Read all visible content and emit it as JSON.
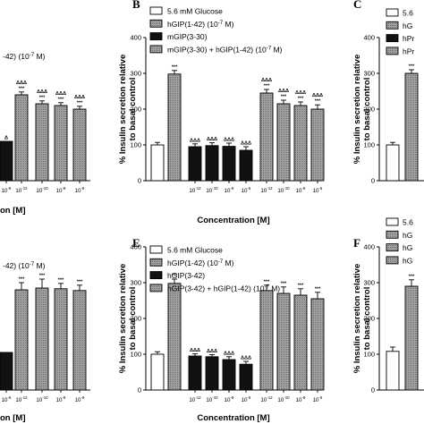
{
  "figure": {
    "panels": {
      "B": {
        "letter": "B"
      },
      "E": {
        "letter": "E"
      },
      "A_partial": {
        "legend_tail": "-42) (10",
        "legend_tail_exp": "-7",
        "legend_tail_unit": " M)",
        "xlabel_partial": "on [M]"
      },
      "D_partial": {
        "legend_tail": "-42) (10",
        "legend_tail_exp": "-7",
        "legend_tail_unit": " M)",
        "xlabel_partial": "on [M]"
      },
      "C": {
        "letter": "C",
        "legend_partial": [
          "5.6",
          "hG",
          "hPr",
          "hPr"
        ]
      },
      "F": {
        "letter": "F",
        "legend_partial": [
          "5.6",
          "hG",
          "hG",
          "hG"
        ]
      }
    }
  },
  "chart_data": [
    {
      "panel": "B",
      "type": "bar",
      "ylabel_line1": "% Insulin secretion relative",
      "ylabel_line2": "to basal control",
      "xlabel": "Concentration [M]",
      "ylim": [
        0,
        400
      ],
      "yticks": [
        "0",
        "100",
        "200",
        "300",
        "400"
      ],
      "xtick_base": "10",
      "xtick_exps": [
        "-12",
        "-10",
        "-8",
        "-6",
        "-12",
        "-10",
        "-8",
        "-6"
      ],
      "legend": [
        {
          "text": "5.6 mM Glucose",
          "exp": "",
          "tail": "",
          "fill": "white"
        },
        {
          "text": "hGIP(1-42)  (10",
          "exp": "-7",
          "tail": " M)",
          "fill": "grey"
        },
        {
          "text": "mGIP(3-30)",
          "exp": "",
          "tail": "",
          "fill": "black"
        },
        {
          "text": "mGIP(3-30) + hGIP(1-42) (10",
          "exp": "-7",
          "tail": " M)",
          "fill": "grey"
        }
      ],
      "bars": [
        {
          "value": 100,
          "err": 7,
          "fill": "white",
          "sig": []
        },
        {
          "value": 298,
          "err": 10,
          "fill": "grey",
          "sig": [
            "***"
          ]
        },
        {
          "value": 95,
          "err": 8,
          "fill": "black",
          "sig": [
            "ΔΔΔ"
          ]
        },
        {
          "value": 98,
          "err": 8,
          "fill": "black",
          "sig": [
            "ΔΔΔ"
          ]
        },
        {
          "value": 96,
          "err": 9,
          "fill": "black",
          "sig": [
            "ΔΔΔ"
          ]
        },
        {
          "value": 85,
          "err": 10,
          "fill": "black",
          "sig": [
            "ΔΔΔ"
          ]
        },
        {
          "value": 245,
          "err": 10,
          "fill": "grey",
          "sig": [
            "***",
            "ΔΔΔ"
          ]
        },
        {
          "value": 215,
          "err": 10,
          "fill": "grey",
          "sig": [
            "***",
            "ΔΔΔ"
          ]
        },
        {
          "value": 210,
          "err": 10,
          "fill": "grey",
          "sig": [
            "***",
            "ΔΔΔ"
          ]
        },
        {
          "value": 200,
          "err": 12,
          "fill": "grey",
          "sig": [
            "***",
            "ΔΔΔ"
          ]
        }
      ]
    },
    {
      "panel": "E",
      "type": "bar",
      "ylabel_line1": "% Insulin secretion relative",
      "ylabel_line2": "to basal control",
      "xlabel": "Concentration [M]",
      "ylim": [
        0,
        400
      ],
      "yticks": [
        "0",
        "100",
        "200",
        "300",
        "400"
      ],
      "xtick_base": "10",
      "xtick_exps": [
        "-12",
        "-10",
        "-8",
        "-6",
        "-12",
        "-10",
        "-8",
        "-6"
      ],
      "legend": [
        {
          "text": "5.6 mM Glucose",
          "exp": "",
          "tail": "",
          "fill": "white"
        },
        {
          "text": "hGIP(1-42) (10",
          "exp": "-7",
          "tail": " M)",
          "fill": "grey"
        },
        {
          "text": "hGIP(3-42)",
          "exp": "",
          "tail": "",
          "fill": "black"
        },
        {
          "text": "hGIP(3-42) + hGIP(1-42) (10",
          "exp": "-7",
          "tail": " M)",
          "fill": "grey"
        }
      ],
      "bars": [
        {
          "value": 100,
          "err": 7,
          "fill": "white",
          "sig": []
        },
        {
          "value": 298,
          "err": 12,
          "fill": "grey",
          "sig": [
            "***"
          ]
        },
        {
          "value": 95,
          "err": 6,
          "fill": "black",
          "sig": [
            "ΔΔΔ"
          ]
        },
        {
          "value": 93,
          "err": 6,
          "fill": "black",
          "sig": [
            "ΔΔΔ"
          ]
        },
        {
          "value": 85,
          "err": 8,
          "fill": "black",
          "sig": [
            "ΔΔΔ"
          ]
        },
        {
          "value": 72,
          "err": 8,
          "fill": "black",
          "sig": [
            "ΔΔΔ"
          ]
        },
        {
          "value": 278,
          "err": 15,
          "fill": "grey",
          "sig": [
            "***"
          ]
        },
        {
          "value": 270,
          "err": 18,
          "fill": "grey",
          "sig": [
            "***"
          ]
        },
        {
          "value": 265,
          "err": 18,
          "fill": "grey",
          "sig": [
            "***"
          ]
        },
        {
          "value": 255,
          "err": 18,
          "fill": "grey",
          "sig": [
            "***"
          ]
        }
      ]
    },
    {
      "panel": "A_partial",
      "type": "bar",
      "ylim": [
        0,
        400
      ],
      "xtick_base": "10",
      "xtick_exps": [
        "-6",
        "-12",
        "-10",
        "-8",
        "-6"
      ],
      "bars": [
        {
          "value": 110,
          "err": 0,
          "fill": "black",
          "sig": [
            "Δ"
          ]
        },
        {
          "value": 240,
          "err": 8,
          "fill": "grey",
          "sig": [
            "***",
            "ΔΔΔ"
          ]
        },
        {
          "value": 215,
          "err": 8,
          "fill": "grey",
          "sig": [
            "***",
            "ΔΔΔ"
          ]
        },
        {
          "value": 210,
          "err": 8,
          "fill": "grey",
          "sig": [
            "***",
            "ΔΔΔ"
          ]
        },
        {
          "value": 200,
          "err": 8,
          "fill": "grey",
          "sig": [
            "***",
            "ΔΔΔ"
          ]
        }
      ]
    },
    {
      "panel": "D_partial",
      "type": "bar",
      "ylim": [
        0,
        400
      ],
      "xtick_base": "10",
      "xtick_exps": [
        "-6",
        "-12",
        "-10",
        "-8",
        "-6"
      ],
      "bars": [
        {
          "value": 105,
          "err": 0,
          "fill": "black",
          "sig": []
        },
        {
          "value": 280,
          "err": 20,
          "fill": "grey",
          "sig": [
            "***"
          ]
        },
        {
          "value": 285,
          "err": 25,
          "fill": "grey",
          "sig": [
            "***"
          ]
        },
        {
          "value": 283,
          "err": 15,
          "fill": "grey",
          "sig": [
            "***"
          ]
        },
        {
          "value": 278,
          "err": 15,
          "fill": "grey",
          "sig": [
            "***"
          ]
        }
      ]
    },
    {
      "panel": "C",
      "type": "bar",
      "ylabel_line1": "% Insulin secretion relative",
      "ylabel_line2": "to basal control",
      "ylim": [
        0,
        400
      ],
      "yticks": [
        "0",
        "100",
        "200",
        "300",
        "400"
      ],
      "bars": [
        {
          "value": 100,
          "err": 7,
          "fill": "white",
          "sig": []
        },
        {
          "value": 300,
          "err": 10,
          "fill": "grey",
          "sig": [
            "***"
          ]
        }
      ]
    },
    {
      "panel": "F",
      "type": "bar",
      "ylabel_line1": "% Insulin secretion relative",
      "ylabel_line2": "to basal control",
      "ylim": [
        0,
        400
      ],
      "yticks": [
        "0",
        "100",
        "200",
        "300",
        "400"
      ],
      "bars": [
        {
          "value": 108,
          "err": 12,
          "fill": "white",
          "sig": []
        },
        {
          "value": 290,
          "err": 18,
          "fill": "grey",
          "sig": [
            "***"
          ]
        }
      ]
    }
  ]
}
